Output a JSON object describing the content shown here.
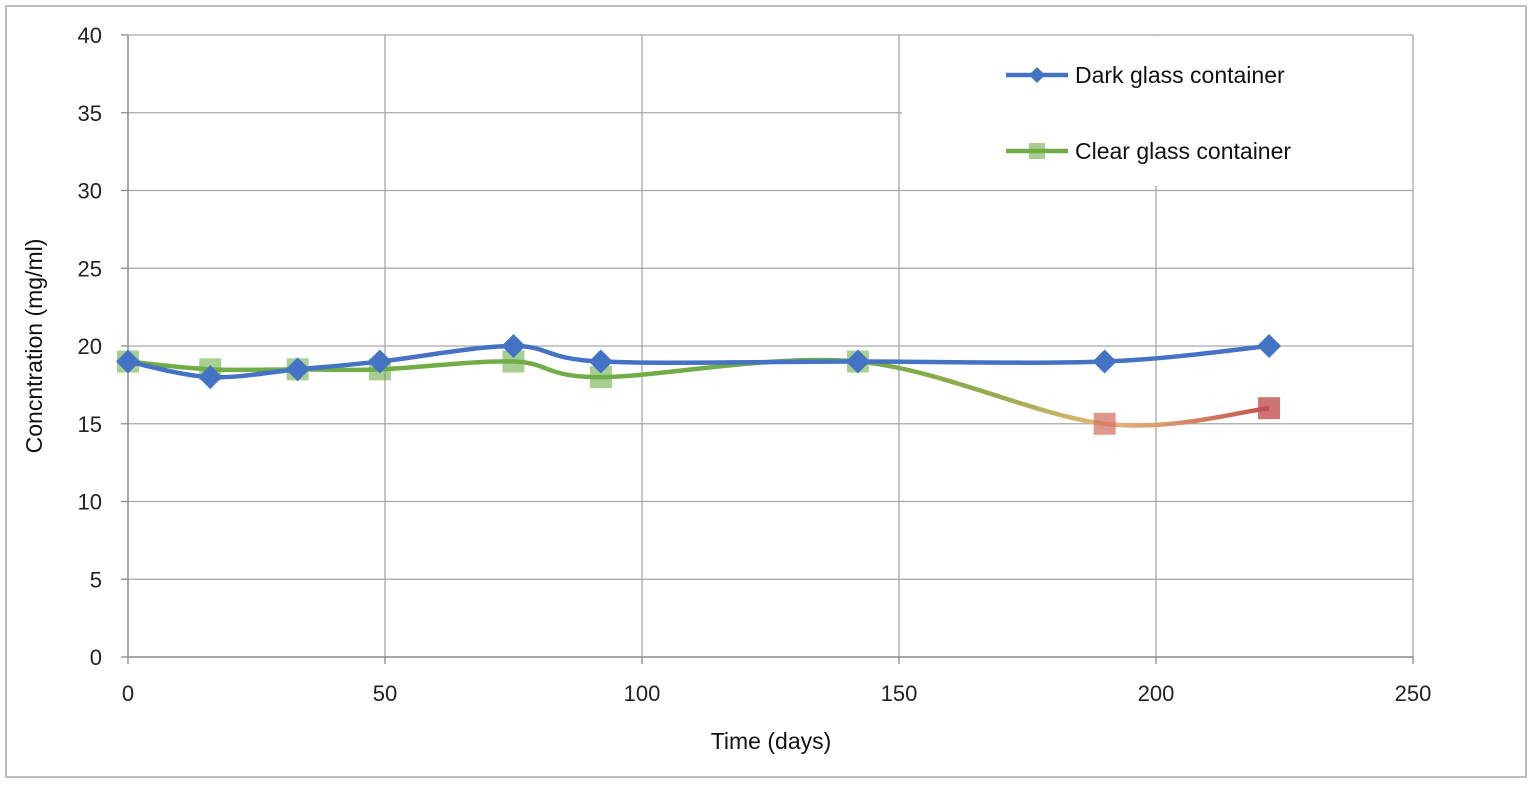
{
  "chart_data": {
    "type": "line",
    "xlabel": "Time (days)",
    "ylabel": "Concntration (mg/ml)",
    "xlim": [
      0,
      250
    ],
    "ylim": [
      0,
      40
    ],
    "x_ticks": [
      "0",
      "50",
      "100",
      "150",
      "200",
      "250"
    ],
    "y_ticks": [
      "0",
      "5",
      "10",
      "15",
      "20",
      "25",
      "30",
      "35",
      "40"
    ],
    "grid": true,
    "legend_position": "top-right",
    "series": [
      {
        "name": "Dark glass container",
        "color": "#4472c4",
        "marker": "diamond",
        "x": [
          0,
          16,
          33,
          49,
          75,
          92,
          142,
          190,
          222
        ],
        "y": [
          19,
          18,
          18.5,
          19,
          20,
          19,
          19,
          19,
          20
        ]
      },
      {
        "name": "Clear glass container",
        "color": "#70ad47",
        "end_color": "#c0504d",
        "marker": "square",
        "x": [
          0,
          16,
          33,
          49,
          75,
          92,
          142,
          190,
          222
        ],
        "y": [
          19,
          18.5,
          18.5,
          18.5,
          19,
          18,
          19,
          15,
          16
        ]
      }
    ]
  }
}
